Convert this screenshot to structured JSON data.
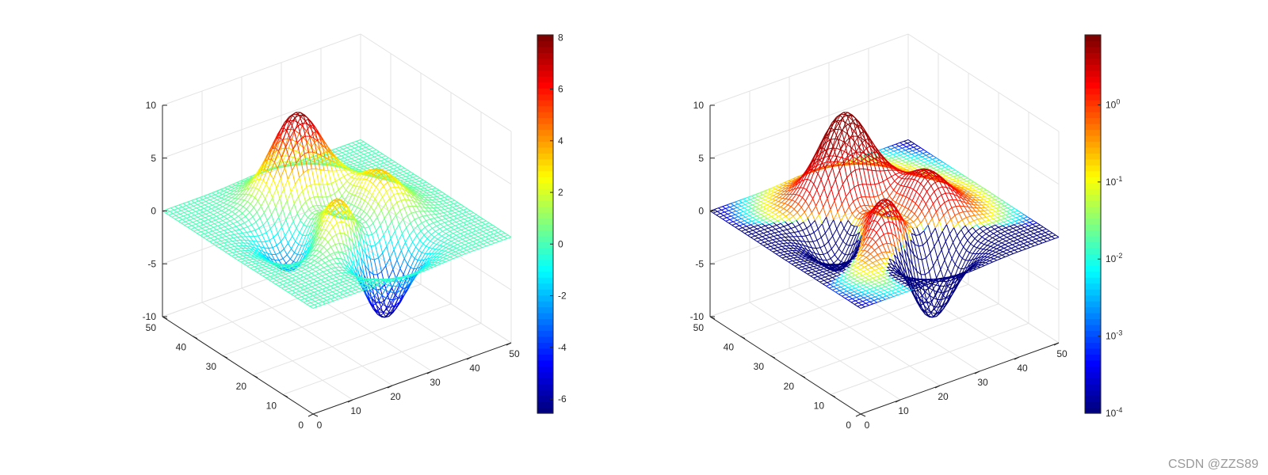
{
  "chart_data": [
    {
      "type": "surface-mesh",
      "function": "peaks",
      "grid_size": 49,
      "x_ticks": [
        "0",
        "10",
        "20",
        "30",
        "40",
        "50"
      ],
      "y_ticks": [
        "0",
        "10",
        "20",
        "30",
        "40",
        "50"
      ],
      "z_ticks": [
        "-10",
        "-5",
        "0",
        "5",
        "10"
      ],
      "xlim": [
        0,
        50
      ],
      "ylim": [
        0,
        50
      ],
      "zlim": [
        -10,
        10
      ],
      "z_min": -6.55,
      "z_max": 8.1,
      "colormap": "jet",
      "grid": true,
      "colorbar": {
        "scale": "linear",
        "range": [
          -6.55,
          8.1
        ],
        "ticks": [
          "8",
          "6",
          "4",
          "2",
          "0",
          "-2",
          "-4",
          "-6"
        ],
        "tick_values": [
          8,
          6,
          4,
          2,
          0,
          -2,
          -4,
          -6
        ],
        "placement": "right"
      }
    },
    {
      "type": "surface-mesh",
      "function": "peaks",
      "grid_size": 49,
      "x_ticks": [
        "0",
        "10",
        "20",
        "30",
        "40",
        "50"
      ],
      "y_ticks": [
        "0",
        "10",
        "20",
        "30",
        "40",
        "50"
      ],
      "z_ticks": [
        "-10",
        "-5",
        "0",
        "5",
        "10"
      ],
      "xlim": [
        0,
        50
      ],
      "ylim": [
        0,
        50
      ],
      "zlim": [
        -10,
        10
      ],
      "z_min": -6.55,
      "z_max": 8.1,
      "colormap": "jet",
      "grid": true,
      "colorbar": {
        "scale": "log",
        "range": [
          0.0001,
          8.1
        ],
        "ticks": [
          {
            "base": "10",
            "exp": "0"
          },
          {
            "base": "10",
            "exp": "-1"
          },
          {
            "base": "10",
            "exp": "-2"
          },
          {
            "base": "10",
            "exp": "-3"
          },
          {
            "base": "10",
            "exp": "-4"
          }
        ],
        "tick_values": [
          1,
          0.1,
          0.01,
          0.001,
          0.0001
        ],
        "placement": "right"
      }
    }
  ],
  "watermark": "CSDN @ZZS89"
}
